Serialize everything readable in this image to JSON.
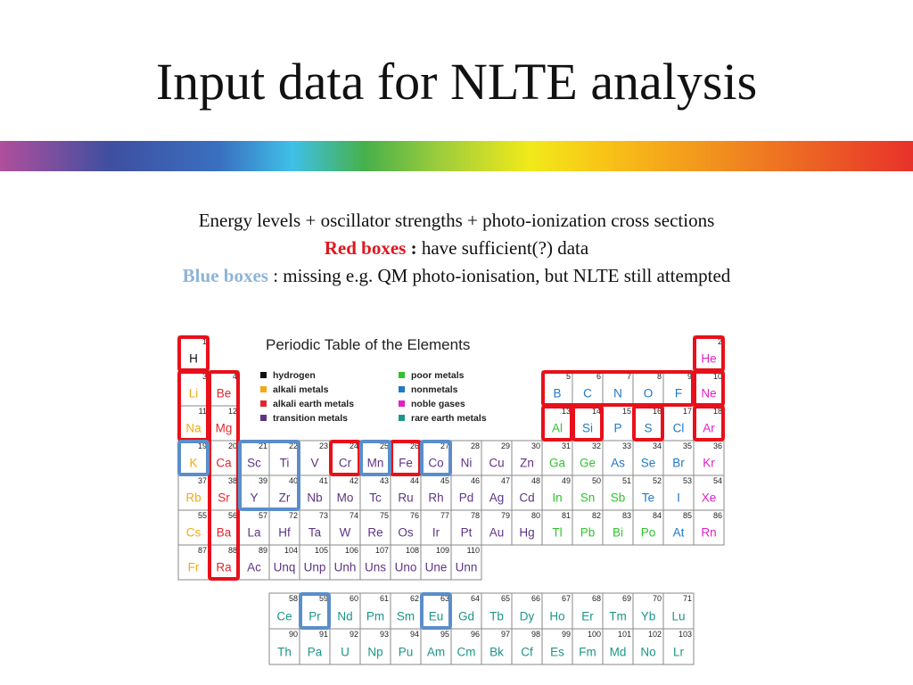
{
  "title": "Input data for NLTE analysis",
  "intro": {
    "line1": "Energy levels + oscillator strengths + photo-ionization cross sections",
    "red_label": "Red boxes",
    "red_sep": ":",
    "red_text": "have sufficient(?) data",
    "blue_label": "Blue boxes",
    "blue_text": ": missing e.g. QM photo-ionisation, but NLTE still attempted"
  },
  "table": {
    "title": "Periodic Table of the Elements",
    "legend": [
      {
        "label": "hydrogen",
        "color": "#111111",
        "symbols": [
          "H"
        ]
      },
      {
        "label": "alkali metals",
        "color": "#f4a814",
        "symbols": [
          "Li",
          "Na",
          "K",
          "Rb",
          "Cs",
          "Fr"
        ]
      },
      {
        "label": "alkali earth metals",
        "color": "#e3242b",
        "symbols": [
          "Be",
          "Mg",
          "Ca",
          "Sr",
          "Ba",
          "Ra"
        ]
      },
      {
        "label": "transition metals",
        "color": "#5e3485",
        "symbols": [
          "Sc",
          "Ti",
          "V",
          "Cr",
          "Mn",
          "Fe",
          "Co",
          "Ni",
          "Cu",
          "Zn",
          "Y",
          "Zr",
          "Nb",
          "Mo",
          "Tc",
          "Ru",
          "Rh",
          "Pd",
          "Ag",
          "Cd",
          "La",
          "Hf",
          "Ta",
          "W",
          "Re",
          "Os",
          "Ir",
          "Pt",
          "Au",
          "Hg",
          "Ac",
          "Unq",
          "Unp",
          "Unh",
          "Uns",
          "Uno",
          "Une",
          "Unn"
        ]
      },
      {
        "label": "poor metals",
        "color": "#2fc42f",
        "symbols": [
          "Al",
          "Ga",
          "Ge",
          "In",
          "Sn",
          "Sb",
          "Tl",
          "Pb",
          "Bi",
          "Po"
        ]
      },
      {
        "label": "nonmetals",
        "color": "#1f78c8",
        "symbols": [
          "B",
          "C",
          "N",
          "O",
          "F",
          "Si",
          "P",
          "S",
          "Cl",
          "As",
          "Se",
          "Br",
          "Te",
          "I",
          "At"
        ]
      },
      {
        "label": "noble gases",
        "color": "#e020c8",
        "symbols": [
          "He",
          "Ne",
          "Ar",
          "Kr",
          "Xe",
          "Rn"
        ]
      },
      {
        "label": "rare earth metals",
        "color": "#1b9688",
        "symbols": [
          "Ce",
          "Pr",
          "Nd",
          "Pm",
          "Sm",
          "Eu",
          "Gd",
          "Tb",
          "Dy",
          "Ho",
          "Er",
          "Tm",
          "Yb",
          "Lu",
          "Th",
          "Pa",
          "U",
          "Np",
          "Pu",
          "Am",
          "Cm",
          "Bk",
          "Cf",
          "Es",
          "Fm",
          "Md",
          "No",
          "Lr"
        ]
      }
    ],
    "rows": [
      [
        {
          "symbol": "H",
          "number": 1
        },
        null,
        null,
        null,
        null,
        null,
        null,
        null,
        null,
        null,
        null,
        null,
        null,
        null,
        null,
        null,
        null,
        {
          "symbol": "He",
          "number": 2
        }
      ],
      [
        {
          "symbol": "Li",
          "number": 3
        },
        {
          "symbol": "Be",
          "number": 4
        },
        null,
        null,
        null,
        null,
        null,
        null,
        null,
        null,
        null,
        null,
        {
          "symbol": "B",
          "number": 5
        },
        {
          "symbol": "C",
          "number": 6
        },
        {
          "symbol": "N",
          "number": 7
        },
        {
          "symbol": "O",
          "number": 8
        },
        {
          "symbol": "F",
          "number": 9
        },
        {
          "symbol": "Ne",
          "number": 10
        }
      ],
      [
        {
          "symbol": "Na",
          "number": 11
        },
        {
          "symbol": "Mg",
          "number": 12
        },
        null,
        null,
        null,
        null,
        null,
        null,
        null,
        null,
        null,
        null,
        {
          "symbol": "Al",
          "number": 13
        },
        {
          "symbol": "Si",
          "number": 14
        },
        {
          "symbol": "P",
          "number": 15
        },
        {
          "symbol": "S",
          "number": 16
        },
        {
          "symbol": "Cl",
          "number": 17
        },
        {
          "symbol": "Ar",
          "number": 18
        }
      ],
      [
        {
          "symbol": "K",
          "number": 19
        },
        {
          "symbol": "Ca",
          "number": 20
        },
        {
          "symbol": "Sc",
          "number": 21
        },
        {
          "symbol": "Ti",
          "number": 22
        },
        {
          "symbol": "V",
          "number": 23
        },
        {
          "symbol": "Cr",
          "number": 24
        },
        {
          "symbol": "Mn",
          "number": 25
        },
        {
          "symbol": "Fe",
          "number": 26
        },
        {
          "symbol": "Co",
          "number": 27
        },
        {
          "symbol": "Ni",
          "number": 28
        },
        {
          "symbol": "Cu",
          "number": 29
        },
        {
          "symbol": "Zn",
          "number": 30
        },
        {
          "symbol": "Ga",
          "number": 31
        },
        {
          "symbol": "Ge",
          "number": 32
        },
        {
          "symbol": "As",
          "number": 33
        },
        {
          "symbol": "Se",
          "number": 34
        },
        {
          "symbol": "Br",
          "number": 35
        },
        {
          "symbol": "Kr",
          "number": 36
        }
      ],
      [
        {
          "symbol": "Rb",
          "number": 37
        },
        {
          "symbol": "Sr",
          "number": 38
        },
        {
          "symbol": "Y",
          "number": 39
        },
        {
          "symbol": "Zr",
          "number": 40
        },
        {
          "symbol": "Nb",
          "number": 41
        },
        {
          "symbol": "Mo",
          "number": 42
        },
        {
          "symbol": "Tc",
          "number": 43
        },
        {
          "symbol": "Ru",
          "number": 44
        },
        {
          "symbol": "Rh",
          "number": 45
        },
        {
          "symbol": "Pd",
          "number": 46
        },
        {
          "symbol": "Ag",
          "number": 47
        },
        {
          "symbol": "Cd",
          "number": 48
        },
        {
          "symbol": "In",
          "number": 49
        },
        {
          "symbol": "Sn",
          "number": 50
        },
        {
          "symbol": "Sb",
          "number": 51
        },
        {
          "symbol": "Te",
          "number": 52
        },
        {
          "symbol": "I",
          "number": 53
        },
        {
          "symbol": "Xe",
          "number": 54
        }
      ],
      [
        {
          "symbol": "Cs",
          "number": 55
        },
        {
          "symbol": "Ba",
          "number": 56
        },
        {
          "symbol": "La",
          "number": 57
        },
        {
          "symbol": "Hf",
          "number": 72
        },
        {
          "symbol": "Ta",
          "number": 73
        },
        {
          "symbol": "W",
          "number": 74
        },
        {
          "symbol": "Re",
          "number": 75
        },
        {
          "symbol": "Os",
          "number": 76
        },
        {
          "symbol": "Ir",
          "number": 77
        },
        {
          "symbol": "Pt",
          "number": 78
        },
        {
          "symbol": "Au",
          "number": 79
        },
        {
          "symbol": "Hg",
          "number": 80
        },
        {
          "symbol": "Tl",
          "number": 81
        },
        {
          "symbol": "Pb",
          "number": 82
        },
        {
          "symbol": "Bi",
          "number": 83
        },
        {
          "symbol": "Po",
          "number": 84
        },
        {
          "symbol": "At",
          "number": 85
        },
        {
          "symbol": "Rn",
          "number": 86
        }
      ],
      [
        {
          "symbol": "Fr",
          "number": 87
        },
        {
          "symbol": "Ra",
          "number": 88
        },
        {
          "symbol": "Ac",
          "number": 89
        },
        {
          "symbol": "Unq",
          "number": 104
        },
        {
          "symbol": "Unp",
          "number": 105
        },
        {
          "symbol": "Unh",
          "number": 106
        },
        {
          "symbol": "Uns",
          "number": 107
        },
        {
          "symbol": "Uno",
          "number": 108
        },
        {
          "symbol": "Une",
          "number": 109
        },
        {
          "symbol": "Unn",
          "number": 110
        },
        null,
        null,
        null,
        null,
        null,
        null,
        null,
        null
      ]
    ],
    "f_rows": [
      [
        {
          "symbol": "Ce",
          "number": 58
        },
        {
          "symbol": "Pr",
          "number": 59
        },
        {
          "symbol": "Nd",
          "number": 60
        },
        {
          "symbol": "Pm",
          "number": 61
        },
        {
          "symbol": "Sm",
          "number": 62
        },
        {
          "symbol": "Eu",
          "number": 63
        },
        {
          "symbol": "Gd",
          "number": 64
        },
        {
          "symbol": "Tb",
          "number": 65
        },
        {
          "symbol": "Dy",
          "number": 66
        },
        {
          "symbol": "Ho",
          "number": 67
        },
        {
          "symbol": "Er",
          "number": 68
        },
        {
          "symbol": "Tm",
          "number": 69
        },
        {
          "symbol": "Yb",
          "number": 70
        },
        {
          "symbol": "Lu",
          "number": 71
        }
      ],
      [
        {
          "symbol": "Th",
          "number": 90
        },
        {
          "symbol": "Pa",
          "number": 91
        },
        {
          "symbol": "U",
          "number": 92
        },
        {
          "symbol": "Np",
          "number": 93
        },
        {
          "symbol": "Pu",
          "number": 94
        },
        {
          "symbol": "Am",
          "number": 95
        },
        {
          "symbol": "Cm",
          "number": 96
        },
        {
          "symbol": "Bk",
          "number": 97
        },
        {
          "symbol": "Cf",
          "number": 98
        },
        {
          "symbol": "Es",
          "number": 99
        },
        {
          "symbol": "Fm",
          "number": 100
        },
        {
          "symbol": "Md",
          "number": 101
        },
        {
          "symbol": "No",
          "number": 102
        },
        {
          "symbol": "Lr",
          "number": 103
        }
      ]
    ],
    "boxes": [
      {
        "color": "#e8101a",
        "span": [
          "H",
          "H"
        ]
      },
      {
        "color": "#e8101a",
        "span": [
          "Li",
          "Na"
        ]
      },
      {
        "color": "#e8101a",
        "span": [
          "Be",
          "Ra"
        ]
      },
      {
        "color": "#e8101a",
        "span": [
          "Cr",
          "Cr"
        ]
      },
      {
        "color": "#e8101a",
        "span": [
          "Fe",
          "Fe"
        ]
      },
      {
        "color": "#e8101a",
        "span": [
          "B",
          "F"
        ]
      },
      {
        "color": "#e8101a",
        "span": [
          "Ne",
          "Ne"
        ]
      },
      {
        "color": "#e8101a",
        "span": [
          "He",
          "He"
        ]
      },
      {
        "color": "#e8101a",
        "span": [
          "Al",
          "Al"
        ]
      },
      {
        "color": "#e8101a",
        "span": [
          "Si",
          "Si"
        ]
      },
      {
        "color": "#e8101a",
        "span": [
          "S",
          "S"
        ]
      },
      {
        "color": "#e8101a",
        "span": [
          "Ar",
          "Ar"
        ]
      },
      {
        "color": "#5b8ec9",
        "span": [
          "K",
          "K"
        ]
      },
      {
        "color": "#5b8ec9",
        "span": [
          "Sc",
          "Zr"
        ]
      },
      {
        "color": "#5b8ec9",
        "span": [
          "Mn",
          "Mn"
        ]
      },
      {
        "color": "#5b8ec9",
        "span": [
          "Co",
          "Co"
        ]
      },
      {
        "color": "#5b8ec9",
        "span": [
          "Pr",
          "Pr"
        ]
      },
      {
        "color": "#5b8ec9",
        "span": [
          "Eu",
          "Eu"
        ]
      }
    ]
  }
}
